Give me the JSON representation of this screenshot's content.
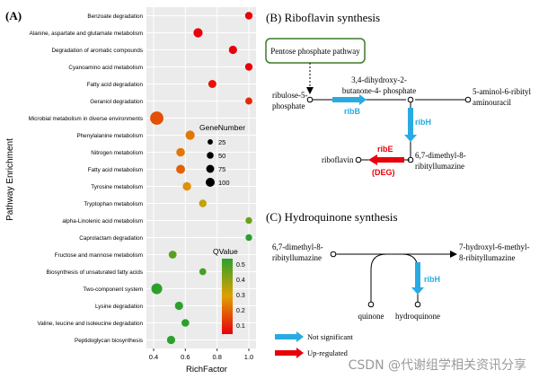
{
  "panelA": {
    "label": "(A)",
    "ylabel": "Pathway Enrichment",
    "xlabel": "RichFactor",
    "xticks": [
      "0.4",
      "0.6",
      "0.8",
      "1.0"
    ],
    "legend_size_title": "GeneNumber",
    "legend_color_title": "QValue",
    "colorbar_ticks": [
      "0.5",
      "0.4",
      "0.3",
      "0.2",
      "0.1"
    ]
  },
  "chart_data": {
    "type": "scatter",
    "title": "",
    "xlabel": "RichFactor",
    "ylabel": "Pathway Enrichment",
    "xlim": [
      0.4,
      1.0
    ],
    "categories": [
      "Benzoate degradation",
      "Alanine, aspartate and glutamate metabolism",
      "Degradation of aromatic compounds",
      "Cyanoamino acid metabolism",
      "Fatty acid degradation",
      "Geraniol degradation",
      "Microbial metabolism in diverse environments",
      "Phenylalanine metabolism",
      "Nitrogen metabolism",
      "Fatty acid metabolism",
      "Tyrosine metabolism",
      "Tryptophan metabolism",
      "alpha-Linolenic acid metabolism",
      "Caprolactam degradation",
      "Fructose and mannose metabolism",
      "Biosynthesis of unsaturated fatty acids",
      "Two-component system",
      "Lysine degradation",
      "Valine, leucine and isoleucine degradation",
      "Peptidoglycan biosynthesis"
    ],
    "points": [
      {
        "x": 1.0,
        "genes": 12,
        "q": 0.05
      },
      {
        "x": 0.68,
        "genes": 22,
        "q": 0.03
      },
      {
        "x": 0.9,
        "genes": 16,
        "q": 0.06
      },
      {
        "x": 1.0,
        "genes": 12,
        "q": 0.08
      },
      {
        "x": 0.77,
        "genes": 15,
        "q": 0.12
      },
      {
        "x": 1.0,
        "genes": 10,
        "q": 0.15
      },
      {
        "x": 0.42,
        "genes": 60,
        "q": 0.2
      },
      {
        "x": 0.63,
        "genes": 22,
        "q": 0.25
      },
      {
        "x": 0.57,
        "genes": 18,
        "q": 0.25
      },
      {
        "x": 0.57,
        "genes": 20,
        "q": 0.22
      },
      {
        "x": 0.61,
        "genes": 17,
        "q": 0.28
      },
      {
        "x": 0.71,
        "genes": 12,
        "q": 0.33
      },
      {
        "x": 1.0,
        "genes": 8,
        "q": 0.43
      },
      {
        "x": 1.0,
        "genes": 8,
        "q": 0.5
      },
      {
        "x": 0.52,
        "genes": 14,
        "q": 0.45
      },
      {
        "x": 0.71,
        "genes": 9,
        "q": 0.47
      },
      {
        "x": 0.42,
        "genes": 35,
        "q": 0.5
      },
      {
        "x": 0.56,
        "genes": 16,
        "q": 0.5
      },
      {
        "x": 0.6,
        "genes": 13,
        "q": 0.52
      },
      {
        "x": 0.51,
        "genes": 16,
        "q": 0.53
      }
    ],
    "size_legend": [
      25,
      50,
      75,
      100
    ],
    "color_scale": {
      "low": "#e8000b",
      "mid": "#e0a000",
      "high": "#2ca02c",
      "range": [
        0.1,
        0.5
      ]
    },
    "grid": true,
    "legend_position": "right"
  },
  "panelB": {
    "title": "(B) Riboflavin synthesis",
    "box": "Pentose phosphate pathway",
    "ribulose": [
      "ribulose-5-",
      "phosphate"
    ],
    "dhb": [
      "3,4-dihydroxy-2-",
      "butanone-4- phosphate"
    ],
    "aminol": [
      "5-aminol-6-ribityl",
      "aminouracil"
    ],
    "lumazine": [
      "6,7-dimethyl-8-",
      "ribityllumazine"
    ],
    "riboflavin": "riboflavin",
    "ribB": "ribB",
    "ribH": "ribH",
    "ribE": "ribE",
    "deg": "(DEG)"
  },
  "panelC": {
    "title": "(C) Hydroquinone synthesis",
    "left": [
      "6,7-dimethyl-8-",
      "ribityllumazine"
    ],
    "right": [
      "7-hydroxyl-6-methyl-",
      "8-ribityllumazine"
    ],
    "quinone": "quinone",
    "hydroquinone": "hydroquinone",
    "ribH": "ribH"
  },
  "legend": {
    "not_significant": "Not significant",
    "up_regulated": "Up-regulated",
    "not_significant_color": "#29abe2",
    "up_regulated_color": "#e8000b"
  },
  "watermark": "CSDN @代谢组学相关资讯分享"
}
